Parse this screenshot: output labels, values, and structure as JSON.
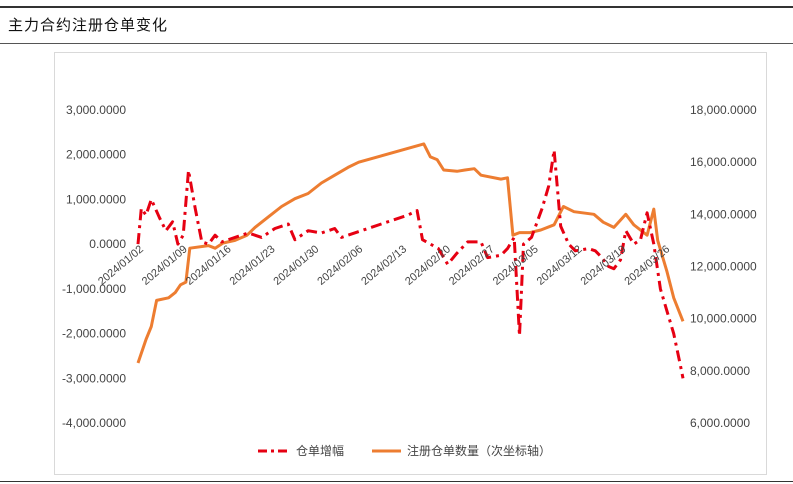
{
  "header": {
    "title": "主力合约注册仓单变化"
  },
  "chart_data": {
    "type": "line",
    "title": "",
    "legend_position": "bottom",
    "grid": false,
    "x_categories": [
      "2024/01/02",
      "2024/01/09",
      "2024/01/16",
      "2024/01/23",
      "2024/01/30",
      "2024/02/06",
      "2024/02/13",
      "2024/02/20",
      "2024/02/27",
      "2024/03/05",
      "2024/03/12",
      "2024/03/19",
      "2024/03/26"
    ],
    "y_left": {
      "min": -4000,
      "max": 3000,
      "tick_labels": [
        "3,000.0000",
        "2,000.0000",
        "1,000.0000",
        "0.0000",
        "-1,000.0000",
        "-2,000.0000",
        "-3,000.0000",
        "-4,000.0000"
      ]
    },
    "y_right": {
      "min": 6000,
      "max": 18000,
      "tick_labels": [
        "18,000.0000",
        "16,000.0000",
        "14,000.0000",
        "12,000.0000",
        "10,000.0000",
        "8,000.0000",
        "6,000.0000"
      ]
    },
    "series": [
      {
        "name": "仓单增幅",
        "axis": "left",
        "color": "#e60012",
        "style": "dash-dot",
        "points": [
          [
            0,
            0
          ],
          [
            0.25,
            800
          ],
          [
            0.6,
            650
          ],
          [
            1.0,
            1000
          ],
          [
            1.6,
            600
          ],
          [
            2.1,
            300
          ],
          [
            2.6,
            500
          ],
          [
            3.0,
            0
          ],
          [
            3.4,
            200
          ],
          [
            3.8,
            1650
          ],
          [
            4.3,
            800
          ],
          [
            4.8,
            50
          ],
          [
            5.3,
            0
          ],
          [
            5.8,
            200
          ],
          [
            6.3,
            50
          ],
          [
            7.3,
            150
          ],
          [
            8.3,
            250
          ],
          [
            9.3,
            150
          ],
          [
            10.3,
            350
          ],
          [
            11.3,
            450
          ],
          [
            11.8,
            100
          ],
          [
            12.8,
            300
          ],
          [
            13.8,
            250
          ],
          [
            14.8,
            350
          ],
          [
            15.3,
            150
          ],
          [
            18.3,
            450
          ],
          [
            20.3,
            650
          ],
          [
            21.0,
            750
          ],
          [
            21.4,
            100
          ],
          [
            22.0,
            0
          ],
          [
            22.6,
            -100
          ],
          [
            23.3,
            -450
          ],
          [
            24.0,
            -200
          ],
          [
            24.8,
            50
          ],
          [
            25.8,
            50
          ],
          [
            26.3,
            -300
          ],
          [
            27.3,
            -250
          ],
          [
            27.8,
            -100
          ],
          [
            28.3,
            150
          ],
          [
            28.7,
            -2050
          ],
          [
            29.0,
            0
          ],
          [
            29.6,
            150
          ],
          [
            30.4,
            800
          ],
          [
            30.9,
            1300
          ],
          [
            31.3,
            2100
          ],
          [
            31.8,
            400
          ],
          [
            32.4,
            0
          ],
          [
            32.9,
            -150
          ],
          [
            33.9,
            -100
          ],
          [
            34.4,
            -150
          ],
          [
            34.9,
            -300
          ],
          [
            35.4,
            -500
          ],
          [
            35.8,
            -550
          ],
          [
            36.3,
            -350
          ],
          [
            36.7,
            300
          ],
          [
            37.3,
            0
          ],
          [
            37.8,
            100
          ],
          [
            38.3,
            700
          ],
          [
            38.8,
            0
          ],
          [
            39.3,
            -1000
          ],
          [
            39.8,
            -1500
          ],
          [
            40.3,
            -2000
          ],
          [
            40.8,
            -2700
          ],
          [
            41.0,
            -3000
          ]
        ]
      },
      {
        "name": "注册仓单数量（次坐标轴）",
        "axis": "right",
        "color": "#ed7d31",
        "style": "solid",
        "points": [
          [
            0,
            8300
          ],
          [
            0.6,
            9200
          ],
          [
            1.0,
            9700
          ],
          [
            1.4,
            10700
          ],
          [
            2.3,
            10800
          ],
          [
            2.8,
            11000
          ],
          [
            3.2,
            11300
          ],
          [
            3.6,
            11400
          ],
          [
            3.9,
            12700
          ],
          [
            5.3,
            12800
          ],
          [
            5.8,
            12700
          ],
          [
            6.4,
            12900
          ],
          [
            7.3,
            13000
          ],
          [
            8.2,
            13200
          ],
          [
            8.8,
            13500
          ],
          [
            9.8,
            13900
          ],
          [
            10.8,
            14300
          ],
          [
            11.8,
            14600
          ],
          [
            12.8,
            14800
          ],
          [
            13.8,
            15200
          ],
          [
            14.8,
            15500
          ],
          [
            15.8,
            15800
          ],
          [
            16.6,
            16000
          ],
          [
            21.5,
            16700
          ],
          [
            22.0,
            16200
          ],
          [
            22.5,
            16100
          ],
          [
            23.0,
            15700
          ],
          [
            24.0,
            15650
          ],
          [
            24.6,
            15700
          ],
          [
            25.3,
            15750
          ],
          [
            25.8,
            15500
          ],
          [
            27.3,
            15350
          ],
          [
            27.8,
            15400
          ],
          [
            28.2,
            13200
          ],
          [
            28.7,
            13300
          ],
          [
            29.5,
            13300
          ],
          [
            30.3,
            13400
          ],
          [
            31.3,
            13600
          ],
          [
            32.0,
            14300
          ],
          [
            32.8,
            14100
          ],
          [
            34.3,
            14000
          ],
          [
            35.0,
            13700
          ],
          [
            35.8,
            13500
          ],
          [
            36.7,
            14000
          ],
          [
            37.3,
            13600
          ],
          [
            38.3,
            13200
          ],
          [
            38.8,
            14200
          ],
          [
            39.1,
            13000
          ],
          [
            39.8,
            11800
          ],
          [
            40.3,
            10800
          ],
          [
            41.0,
            9900
          ]
        ]
      }
    ]
  }
}
